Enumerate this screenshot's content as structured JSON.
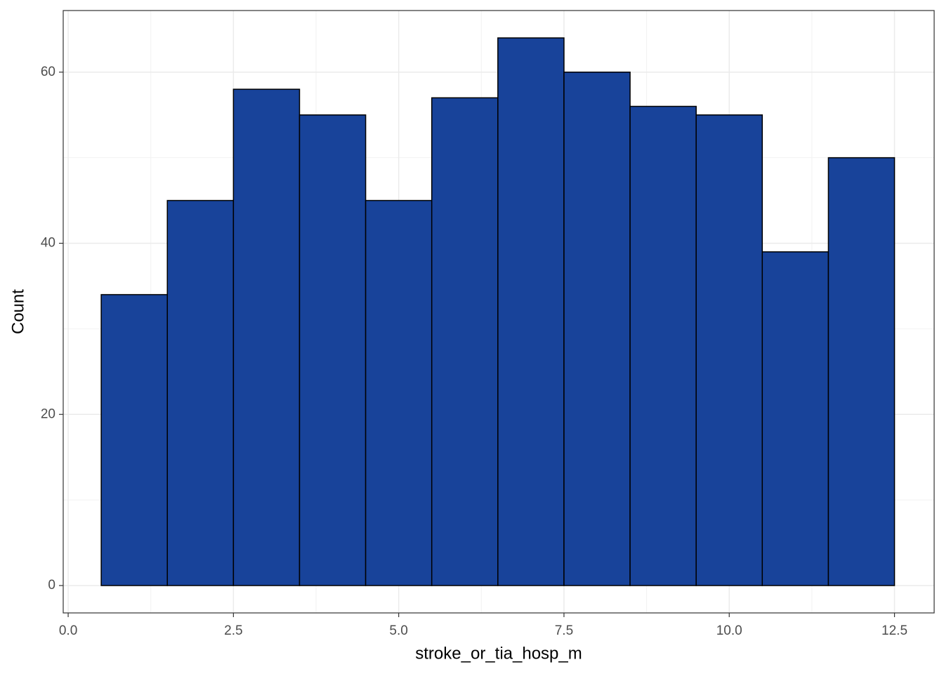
{
  "chart_data": {
    "type": "histogram",
    "x_label": "stroke_or_tia_hosp_m",
    "y_label": "Count",
    "bins": [
      0.5,
      1.5,
      2.5,
      3.5,
      4.5,
      5.5,
      6.5,
      7.5,
      8.5,
      9.5,
      10.5,
      11.5,
      12.5
    ],
    "values": [
      34,
      45,
      58,
      55,
      45,
      57,
      64,
      60,
      56,
      55,
      39,
      50
    ],
    "color": "#18439a",
    "edge_color": "#000000",
    "xlim": [
      -0.075,
      13.1
    ],
    "ylim": [
      -3.2,
      67.2
    ],
    "xticks": [
      {
        "value": 0,
        "label": "0.0"
      },
      2.5,
      {
        "value": 5,
        "label": "5.0"
      },
      7.5,
      {
        "value": 10,
        "label": "10.0"
      },
      12.5
    ],
    "yticks": [
      0,
      20,
      40,
      60
    ],
    "grid": true
  }
}
